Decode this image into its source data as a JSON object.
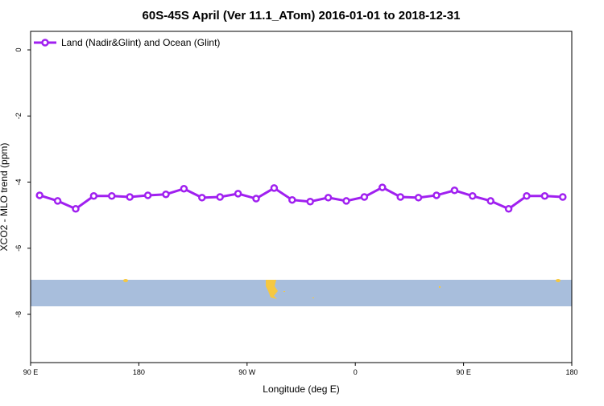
{
  "chart_data": {
    "type": "line",
    "title": "60S-45S April (Ver 11.1_ATom)   2016-01-01 to 2018-12-31",
    "x_label": "Longitude (deg E)",
    "y_label": "XCO2 - MLO trend (ppm)",
    "x": [
      97.5,
      112.5,
      127.5,
      142.5,
      157.5,
      172.5,
      187.5,
      202.5,
      217.5,
      232.5,
      247.5,
      262.5,
      277.5,
      292.5,
      307.5,
      322.5,
      337.5,
      352.5,
      367.5,
      382.5,
      397.5,
      412.5,
      427.5,
      442.5,
      457.5,
      472.5,
      487.5,
      502.5,
      517.5,
      532.5
    ],
    "series": [
      {
        "name": "Land (Nadir&Glint) and Ocean (Glint)",
        "color": "#a020f0",
        "values": [
          -4.4,
          -4.57,
          -4.81,
          -4.42,
          -4.42,
          -4.45,
          -4.4,
          -4.37,
          -4.2,
          -4.47,
          -4.45,
          -4.35,
          -4.5,
          -4.18,
          -4.54,
          -4.59,
          -4.47,
          -4.57,
          -4.45,
          -4.16,
          -4.45,
          -4.47,
          -4.4,
          -4.25,
          -4.42,
          -4.57,
          -4.81,
          -4.42,
          -4.42,
          -4.45
        ]
      }
    ],
    "xlim": [
      90,
      540
    ],
    "xticks": [
      {
        "value": 90,
        "label": "90 E"
      },
      {
        "value": 180,
        "label": "180"
      },
      {
        "value": 270,
        "label": "90 W"
      },
      {
        "value": 360,
        "label": "0"
      },
      {
        "value": 450,
        "label": "90 E"
      },
      {
        "value": 540,
        "label": "180"
      }
    ],
    "ylim": [
      -9.46,
      0.56
    ],
    "yticks": [
      0,
      -2,
      -4,
      -6,
      -8
    ],
    "legend": "top-left"
  }
}
